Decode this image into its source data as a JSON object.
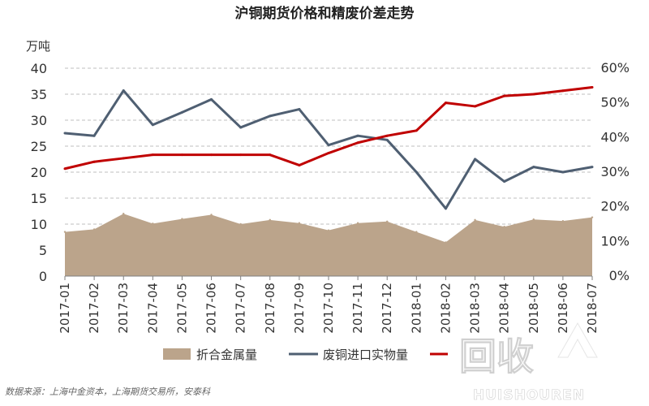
{
  "chart_data": {
    "type": "line",
    "title": "沪铜期货价格和精废价差走势",
    "y_left_unit": "万吨",
    "y_left_ticks": [
      "0",
      "5",
      "10",
      "15",
      "20",
      "25",
      "30",
      "35",
      "40"
    ],
    "y_right_ticks": [
      "0%",
      "10%",
      "20%",
      "30%",
      "40%",
      "50%",
      "60%"
    ],
    "ylim_left": [
      0,
      40
    ],
    "ylim_right": [
      0,
      60
    ],
    "grid": "dashed horizontal",
    "legend_position": "bottom",
    "categories": [
      "2017-01",
      "2017-02",
      "2017-03",
      "2017-04",
      "2017-05",
      "2017-06",
      "2017-07",
      "2017-08",
      "2017-09",
      "2017-10",
      "2017-11",
      "2017-12",
      "2018-01",
      "2018-02",
      "2018-03",
      "2018-04",
      "2018-05",
      "2018-06",
      "2018-07"
    ],
    "series": [
      {
        "name": "折合金属量",
        "type": "area",
        "axis": "left",
        "color": "#bba48b",
        "values": [
          8.5,
          9.0,
          12.0,
          10.1,
          11.0,
          11.8,
          10.0,
          10.8,
          10.2,
          8.8,
          10.2,
          10.5,
          8.5,
          6.5,
          10.8,
          9.5,
          10.9,
          10.6,
          11.3
        ]
      },
      {
        "name": "废铜进口实物量",
        "type": "line",
        "axis": "left",
        "color": "#4f5f72",
        "values": [
          27.5,
          27.0,
          35.7,
          29.1,
          31.5,
          34.0,
          28.6,
          30.8,
          32.1,
          25.2,
          27.0,
          26.2,
          20.0,
          13.0,
          22.5,
          18.2,
          21.0,
          20.0,
          21.0
        ]
      },
      {
        "name": "",
        "type": "line",
        "axis": "right",
        "color": "#c00000",
        "values": [
          31.0,
          33.0,
          34.0,
          35.0,
          35.0,
          35.0,
          35.0,
          35.0,
          32.0,
          35.5,
          38.5,
          40.5,
          42.0,
          50.0,
          49.0,
          52.0,
          52.5,
          53.5,
          54.5
        ]
      }
    ]
  },
  "legend": {
    "item1": "折合金属量",
    "item2": "废铜进口实物量"
  },
  "source": "数据来源：上海中金资本，上海期货交易所，安泰科",
  "watermark": {
    "big": "回收",
    "small": "HUISHOUREN"
  }
}
